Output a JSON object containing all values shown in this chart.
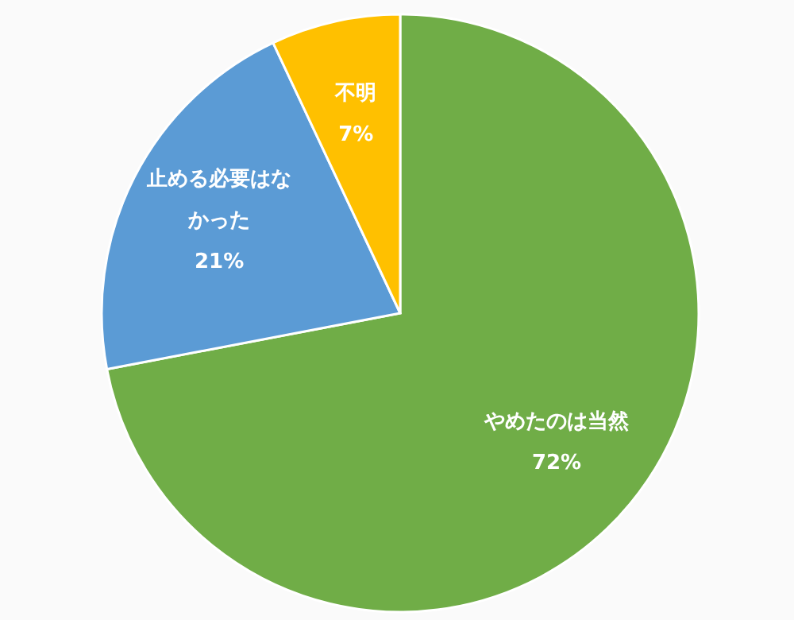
{
  "chart_data": {
    "type": "pie",
    "categories": [
      "やめたのは当然",
      "止める必要はなかった",
      "不明"
    ],
    "values": [
      72,
      21,
      7
    ],
    "colors": [
      "#70ad47",
      "#5b9bd5",
      "#ffc000"
    ],
    "value_labels": [
      "72%",
      "21%",
      "7%"
    ]
  }
}
